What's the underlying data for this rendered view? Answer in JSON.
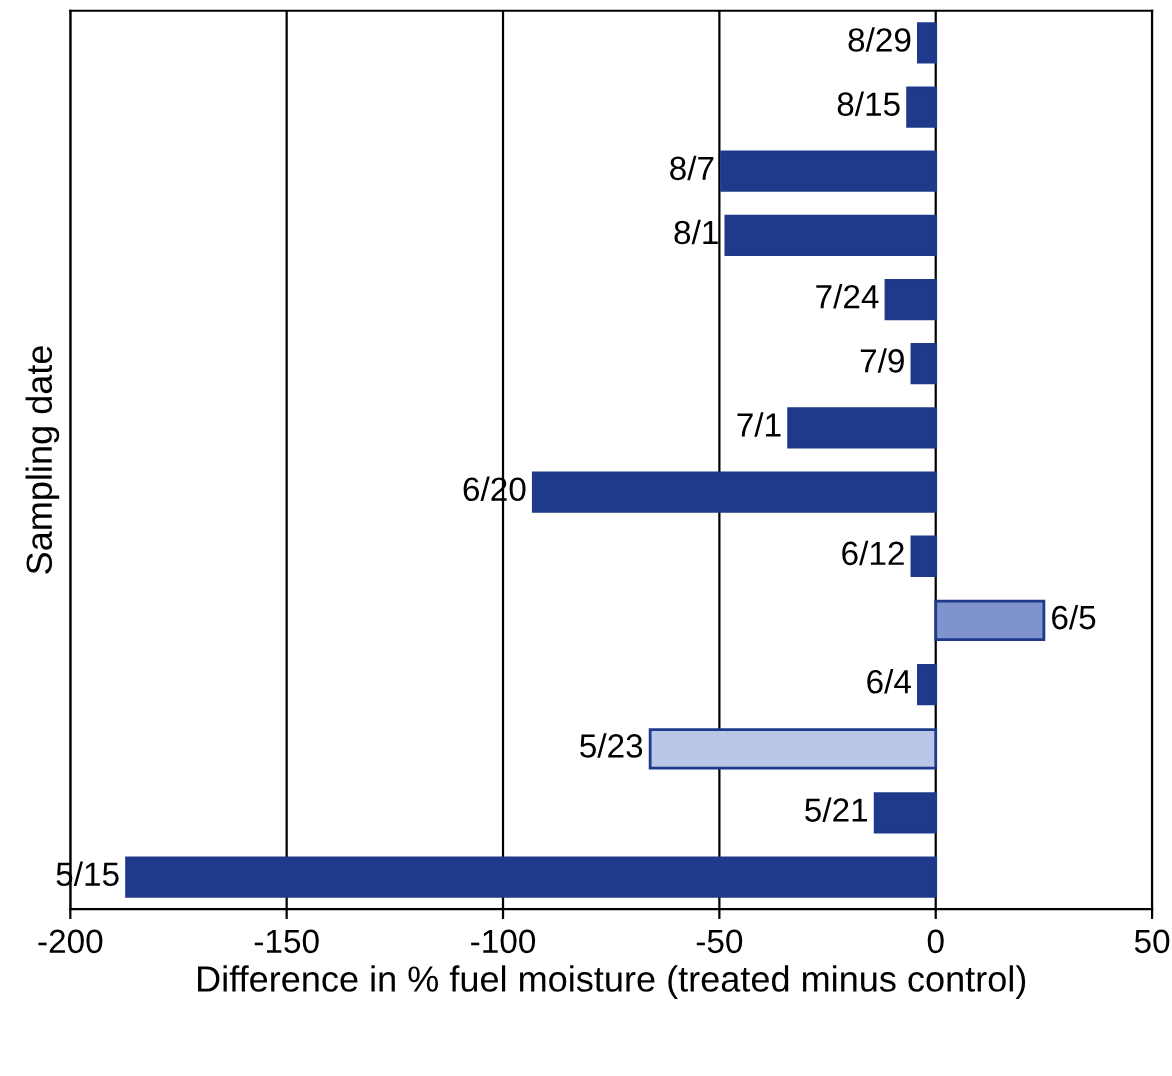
{
  "chart_data": {
    "type": "bar",
    "orientation": "horizontal",
    "xlabel": "Difference in % fuel moisture (treated minus control)",
    "ylabel": "Sampling date",
    "categories": [
      "8/29",
      "8/15",
      "8/7",
      "8/1",
      "7/24",
      "7/9",
      "7/1",
      "6/20",
      "6/12",
      "6/5",
      "6/4",
      "5/23",
      "5/21",
      "5/15"
    ],
    "values": [
      -4,
      -6.5,
      -49.5,
      -48.5,
      -11.5,
      -5.5,
      -34,
      -93,
      -5.5,
      25,
      -4,
      -66,
      -14,
      -187
    ],
    "colors": [
      "#1f3a8a",
      "#1f3a8a",
      "#1f3a8a",
      "#1f3a8a",
      "#1f3a8a",
      "#1f3a8a",
      "#1f3a8a",
      "#1f3a8a",
      "#1f3a8a",
      "#7f93cc",
      "#1f3a8a",
      "#b9c6e8",
      "#1f3a8a",
      "#1f3a8a"
    ],
    "xlim": [
      -200,
      50
    ],
    "xticks": [
      -200,
      -150,
      -100,
      -50,
      0,
      50
    ],
    "grid": "x",
    "tick_labels": "x"
  }
}
